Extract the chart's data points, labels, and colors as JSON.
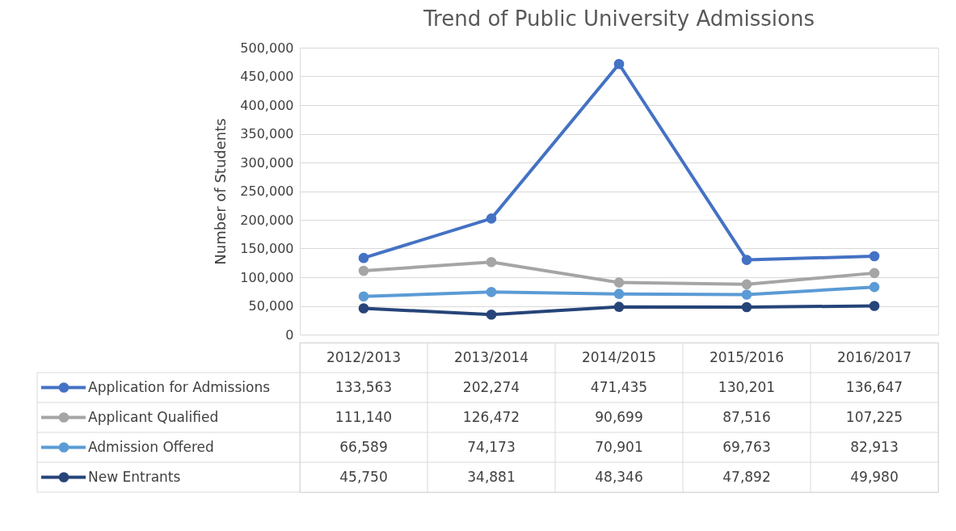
{
  "chart_data": {
    "type": "line",
    "title": "Trend of Public University Admissions",
    "ylabel": "Number of Students",
    "categories": [
      "2012/2013",
      "2013/2014",
      "2014/2015",
      "2015/2016",
      "2016/2017"
    ],
    "series": [
      {
        "name": "Application for Admissions",
        "color": "#4472c4",
        "values": [
          133563,
          202274,
          471435,
          130201,
          136647
        ],
        "value_labels": [
          "133,563",
          "202,274",
          "471,435",
          "130,201",
          "136,647"
        ]
      },
      {
        "name": "Applicant  Qualified",
        "color": "#a5a5a5",
        "values": [
          111140,
          126472,
          90699,
          87516,
          107225
        ],
        "value_labels": [
          "111,140",
          "126,472",
          "90,699",
          "87,516",
          "107,225"
        ]
      },
      {
        "name": "Admission Offered",
        "color": "#5b9bd5",
        "values": [
          66589,
          74173,
          70901,
          69763,
          82913
        ],
        "value_labels": [
          "66,589",
          "74,173",
          "70,901",
          "69,763",
          "82,913"
        ]
      },
      {
        "name": "New  Entrants",
        "color": "#264478",
        "values": [
          45750,
          34881,
          48346,
          47892,
          49980
        ],
        "value_labels": [
          "45,750",
          "34,881",
          "48,346",
          "47,892",
          "49,980"
        ]
      }
    ],
    "ylim": [
      0,
      500000
    ],
    "yticks": [
      0,
      {
        "value": 50000,
        "label": "50,000"
      },
      {
        "value": 100000,
        "label": "100,000"
      },
      {
        "value": 150000,
        "label": "150,000"
      },
      {
        "value": 200000,
        "label": "200,000"
      },
      {
        "value": 250000,
        "label": "250,000"
      },
      {
        "value": 300000,
        "label": "300,000"
      },
      {
        "value": 350000,
        "label": "350,000"
      },
      {
        "value": 400000,
        "label": "400,000"
      },
      {
        "value": 450000,
        "label": "450,000"
      },
      {
        "value": 500000,
        "label": "500,000"
      }
    ],
    "grid": "y",
    "legend": "bottom",
    "marker": "circle",
    "line_style": "solid"
  }
}
